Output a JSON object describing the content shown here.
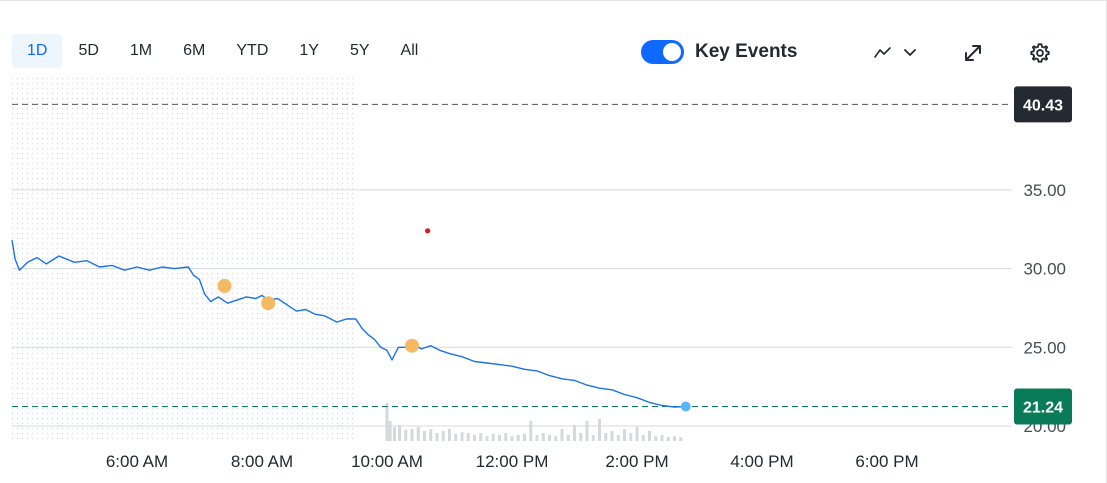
{
  "toolbar": {
    "ranges": [
      "1D",
      "5D",
      "1M",
      "6M",
      "YTD",
      "1Y",
      "5Y",
      "All"
    ],
    "active_range": "1D",
    "key_events_label": "Key Events",
    "key_events_on": true,
    "chart_type_icon": "line-chart-icon",
    "expand_icon": "expand-icon",
    "settings_icon": "gear-icon"
  },
  "colors": {
    "line": "#1a73e8",
    "accent": "#0f69ff",
    "previous_close_badge": "#232a31",
    "current_price_badge": "#0a7b57",
    "current_line": "#0a7b57",
    "event_marker": "#f5b961",
    "live_dot": "#5ab5ff",
    "alert_dot": "#e0171f",
    "volume": "#d5d9de",
    "grid": "#d6d9dd"
  },
  "chart_data": {
    "type": "line",
    "title": "",
    "xlabel": "",
    "ylabel": "",
    "ylim": [
      20,
      41.6
    ],
    "y_ticks": [
      "35.00",
      "30.00",
      "25.00",
      "20.00"
    ],
    "y_tick_values": [
      35,
      30,
      25,
      20
    ],
    "x_ticks": [
      "6:00 AM",
      "8:00 AM",
      "10:00 AM",
      "12:00 PM",
      "2:00 PM",
      "4:00 PM",
      "6:00 PM"
    ],
    "x_tick_hours": [
      6,
      8,
      10,
      12,
      14,
      16,
      18
    ],
    "x_range_hours": [
      4.0,
      20.0
    ],
    "premarket_end_hour": 9.5,
    "previous_close": "40.43",
    "previous_close_value": 40.43,
    "current_price": "21.24",
    "current_price_value": 21.24,
    "series": [
      {
        "points": [
          [
            4.0,
            31.8
          ],
          [
            4.05,
            30.6
          ],
          [
            4.12,
            29.9
          ],
          [
            4.25,
            30.4
          ],
          [
            4.4,
            30.7
          ],
          [
            4.55,
            30.3
          ],
          [
            4.75,
            30.8
          ],
          [
            5.0,
            30.4
          ],
          [
            5.2,
            30.5
          ],
          [
            5.4,
            30.1
          ],
          [
            5.6,
            30.2
          ],
          [
            5.8,
            29.9
          ],
          [
            6.0,
            30.1
          ],
          [
            6.2,
            29.9
          ],
          [
            6.4,
            30.1
          ],
          [
            6.6,
            30.0
          ],
          [
            6.82,
            30.1
          ],
          [
            6.9,
            29.6
          ],
          [
            7.0,
            29.3
          ],
          [
            7.08,
            28.4
          ],
          [
            7.18,
            27.9
          ],
          [
            7.3,
            28.2
          ],
          [
            7.45,
            27.8
          ],
          [
            7.6,
            28.0
          ],
          [
            7.75,
            28.2
          ],
          [
            7.9,
            28.1
          ],
          [
            8.0,
            28.3
          ],
          [
            8.1,
            28.0
          ],
          [
            8.25,
            28.1
          ],
          [
            8.4,
            27.7
          ],
          [
            8.55,
            27.3
          ],
          [
            8.7,
            27.4
          ],
          [
            8.85,
            27.1
          ],
          [
            9.0,
            27.0
          ],
          [
            9.2,
            26.6
          ],
          [
            9.35,
            26.8
          ],
          [
            9.5,
            26.8
          ],
          [
            9.6,
            26.2
          ],
          [
            9.7,
            25.8
          ],
          [
            9.8,
            25.5
          ],
          [
            9.9,
            25.0
          ],
          [
            10.0,
            24.8
          ],
          [
            10.08,
            24.2
          ],
          [
            10.18,
            25.0
          ],
          [
            10.3,
            25.0
          ],
          [
            10.42,
            25.2
          ],
          [
            10.55,
            24.9
          ],
          [
            10.7,
            25.1
          ],
          [
            10.85,
            24.8
          ],
          [
            11.0,
            24.6
          ],
          [
            11.2,
            24.4
          ],
          [
            11.4,
            24.1
          ],
          [
            11.6,
            24.0
          ],
          [
            11.8,
            23.9
          ],
          [
            12.0,
            23.8
          ],
          [
            12.2,
            23.6
          ],
          [
            12.4,
            23.5
          ],
          [
            12.6,
            23.2
          ],
          [
            12.8,
            23.0
          ],
          [
            13.0,
            22.9
          ],
          [
            13.2,
            22.6
          ],
          [
            13.4,
            22.4
          ],
          [
            13.6,
            22.3
          ],
          [
            13.8,
            22.0
          ],
          [
            14.0,
            21.8
          ],
          [
            14.2,
            21.5
          ],
          [
            14.4,
            21.3
          ],
          [
            14.6,
            21.2
          ],
          [
            14.78,
            21.24
          ]
        ]
      }
    ],
    "key_events": [
      {
        "hour": 7.4,
        "value": 28.9
      },
      {
        "hour": 8.1,
        "value": 27.8
      },
      {
        "hour": 10.4,
        "value": 25.1
      }
    ],
    "alert_point": {
      "hour": 10.65,
      "value": 32.4
    },
    "volume": [
      [
        10.0,
        0.95
      ],
      [
        10.05,
        0.5
      ],
      [
        10.12,
        0.35
      ],
      [
        10.2,
        0.4
      ],
      [
        10.3,
        0.28
      ],
      [
        10.4,
        0.3
      ],
      [
        10.5,
        0.35
      ],
      [
        10.6,
        0.25
      ],
      [
        10.7,
        0.3
      ],
      [
        10.8,
        0.2
      ],
      [
        10.9,
        0.25
      ],
      [
        11.0,
        0.3
      ],
      [
        11.1,
        0.18
      ],
      [
        11.2,
        0.22
      ],
      [
        11.3,
        0.2
      ],
      [
        11.4,
        0.15
      ],
      [
        11.5,
        0.2
      ],
      [
        11.6,
        0.12
      ],
      [
        11.7,
        0.18
      ],
      [
        11.8,
        0.15
      ],
      [
        11.9,
        0.2
      ],
      [
        12.0,
        0.12
      ],
      [
        12.1,
        0.15
      ],
      [
        12.2,
        0.18
      ],
      [
        12.3,
        0.5
      ],
      [
        12.4,
        0.15
      ],
      [
        12.5,
        0.2
      ],
      [
        12.6,
        0.15
      ],
      [
        12.7,
        0.12
      ],
      [
        12.8,
        0.3
      ],
      [
        12.9,
        0.15
      ],
      [
        13.0,
        0.4
      ],
      [
        13.1,
        0.2
      ],
      [
        13.2,
        0.5
      ],
      [
        13.3,
        0.15
      ],
      [
        13.4,
        0.55
      ],
      [
        13.5,
        0.2
      ],
      [
        13.6,
        0.25
      ],
      [
        13.7,
        0.15
      ],
      [
        13.8,
        0.3
      ],
      [
        13.9,
        0.2
      ],
      [
        14.0,
        0.35
      ],
      [
        14.1,
        0.15
      ],
      [
        14.2,
        0.25
      ],
      [
        14.3,
        0.12
      ],
      [
        14.4,
        0.15
      ],
      [
        14.5,
        0.1
      ],
      [
        14.6,
        0.12
      ],
      [
        14.7,
        0.1
      ]
    ]
  }
}
